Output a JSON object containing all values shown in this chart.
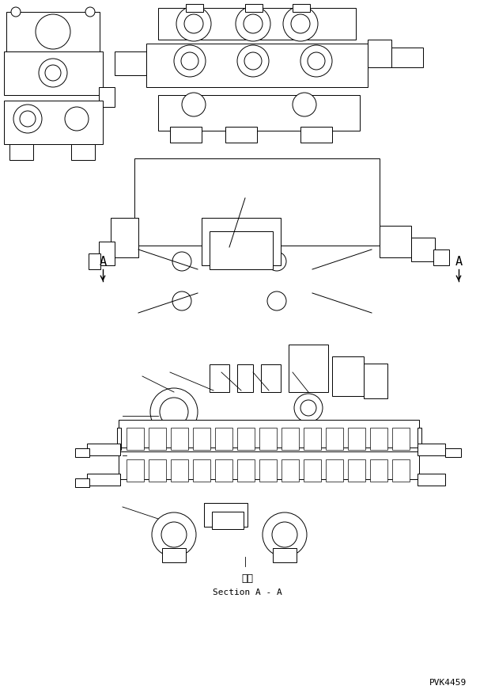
{
  "background_color": "#ffffff",
  "line_color": "#000000",
  "text_color": "#000000",
  "title_bottom": "断面",
  "subtitle_bottom": "Section A - A",
  "watermark": "PVK4459",
  "fig_width": 6.26,
  "fig_height": 8.8,
  "dpi": 100
}
